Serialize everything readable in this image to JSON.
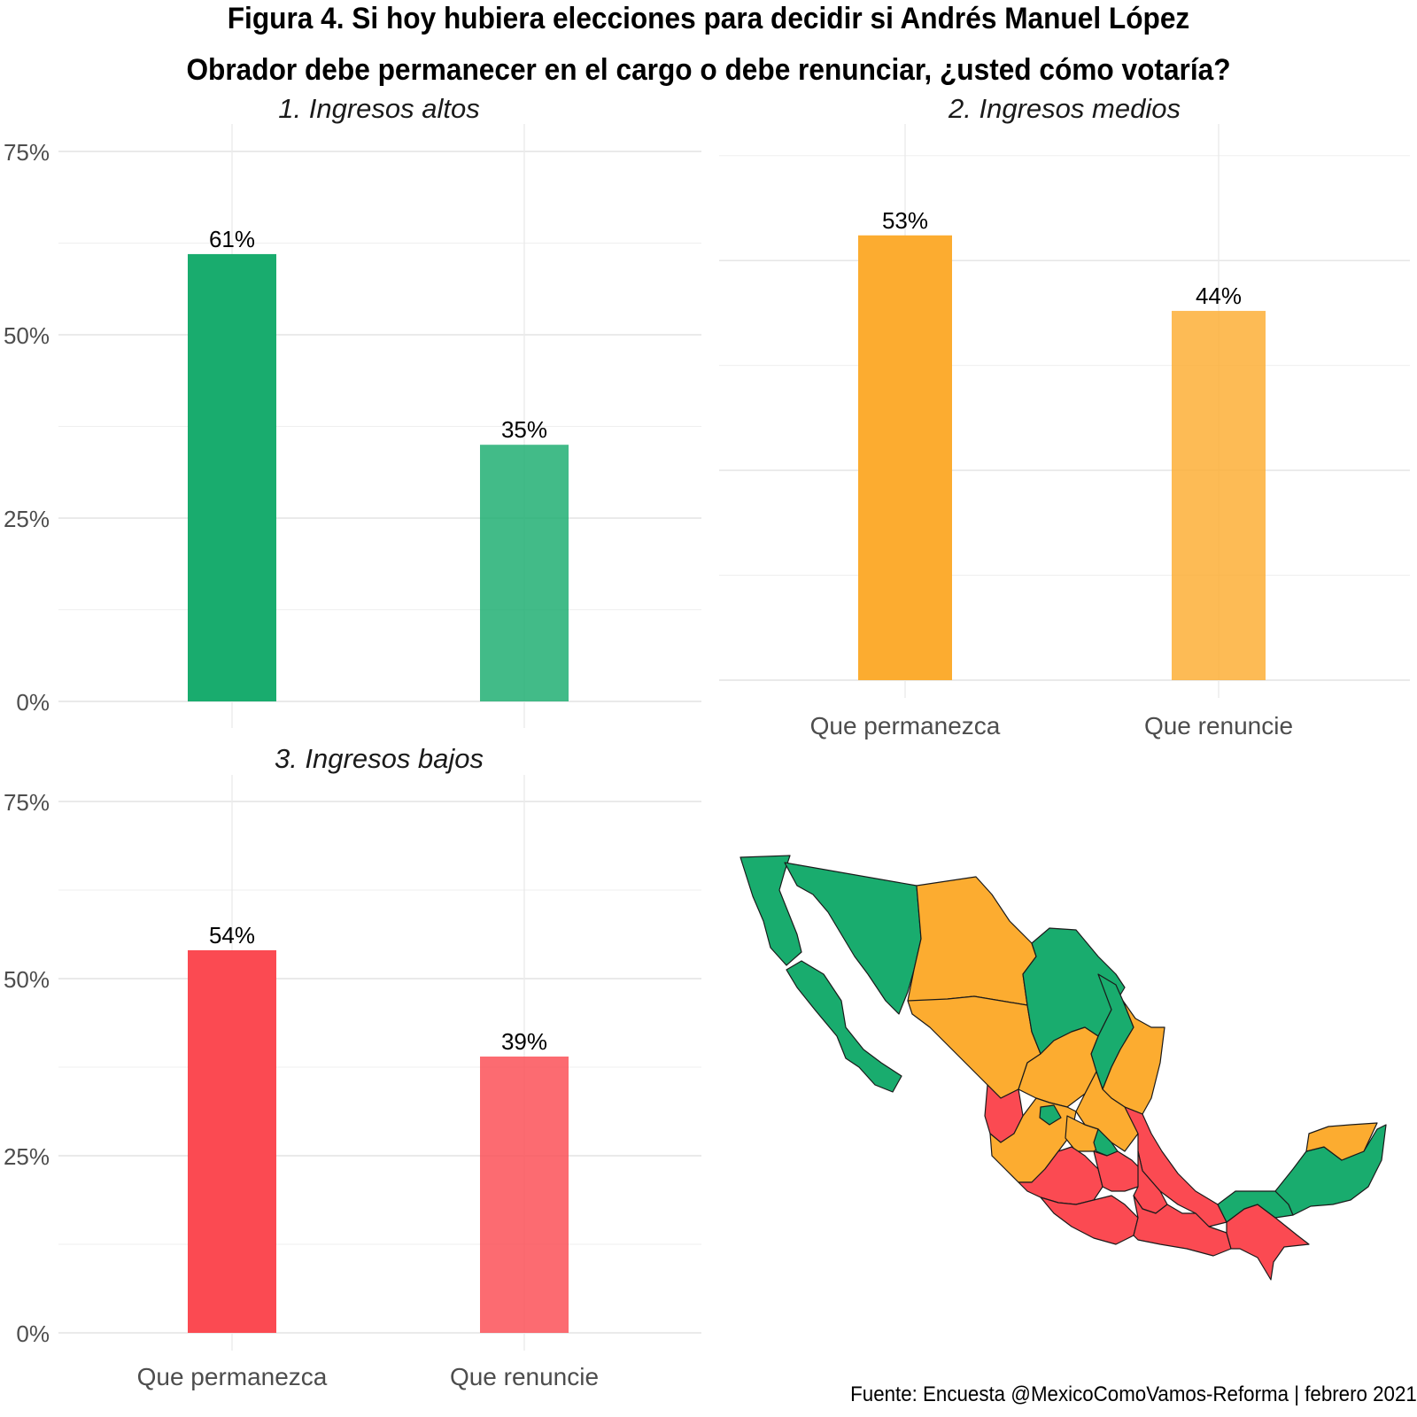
{
  "title_line1": "Figura 4. Si hoy hubiera elecciones para decidir si Andrés Manuel López",
  "title_line2": "Obrador debe permanecer en el cargo o debe renunciar, ¿usted cómo votaría?",
  "source": "Fuente: Encuesta @MexicoComoVamos-Reforma | febrero 2021",
  "colors": {
    "altos": "#19ac6e",
    "medios": "#fcac30",
    "bajos": "#fb4a52"
  },
  "map": {
    "colors": {
      "green": "#19ac6e",
      "orange": "#fcac30",
      "red": "#fb4a52"
    }
  },
  "chart_data": [
    {
      "type": "bar",
      "title": "1. Ingresos altos",
      "categories": [
        "Que permanezca",
        "Que renuncie"
      ],
      "values": [
        61,
        35
      ],
      "value_labels": [
        "61%",
        "35%"
      ],
      "ylim": [
        0,
        75
      ],
      "yticks": [
        "0%",
        "25%",
        "50%",
        "75%"
      ],
      "show_x_labels": false,
      "show_y_labels": true,
      "grid": true
    },
    {
      "type": "bar",
      "title": "2. Ingresos medios",
      "categories": [
        "Que permanezca",
        "Que renuncie"
      ],
      "values": [
        53,
        44
      ],
      "value_labels": [
        "53%",
        "44%"
      ],
      "ylim": [
        0,
        63
      ],
      "show_x_labels": true,
      "show_y_labels": false,
      "grid": true
    },
    {
      "type": "bar",
      "title": "3. Ingresos bajos",
      "categories": [
        "Que permanezca",
        "Que renuncie"
      ],
      "values": [
        54,
        39
      ],
      "value_labels": [
        "54%",
        "39%"
      ],
      "ylim": [
        0,
        75
      ],
      "yticks": [
        "0%",
        "25%",
        "50%",
        "75%"
      ],
      "show_x_labels": true,
      "show_y_labels": true,
      "grid": true
    }
  ]
}
